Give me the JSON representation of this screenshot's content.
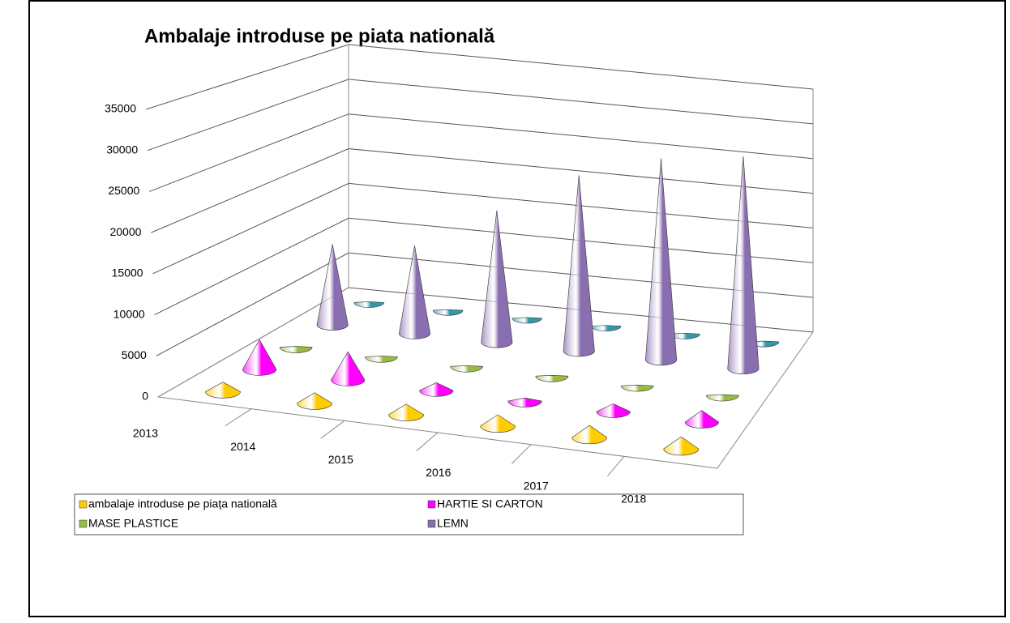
{
  "chart_data": {
    "type": "cone3d",
    "title": "Ambalaje introduse  pe  piata natională",
    "categories": [
      "2013",
      "2014",
      "2015",
      "2016",
      "2017",
      "2018"
    ],
    "series": [
      {
        "name": "ambalaje introduse pe piața natională",
        "color": "#ffcc00",
        "values": [
          1200,
          1300,
          1300,
          1400,
          1500,
          1500
        ]
      },
      {
        "name": "HARTIE SI CARTON",
        "color": "#ff00ff",
        "values": [
          3800,
          3600,
          1000,
          400,
          1000,
          1500
        ]
      },
      {
        "name": "MASE PLASTICE",
        "color": "#99bb44",
        "values": [
          100,
          100,
          100,
          100,
          100,
          100
        ]
      },
      {
        "name": "LEMN",
        "color": "#8a6fb0",
        "values": [
          11000,
          12000,
          18000,
          24000,
          27500,
          29000
        ]
      },
      {
        "name": null,
        "color": "#3399aa",
        "values": [
          100,
          100,
          100,
          100,
          100,
          100
        ]
      }
    ],
    "ylim": [
      0,
      35000
    ],
    "yticks": [
      0,
      5000,
      10000,
      15000,
      20000,
      25000,
      30000,
      35000
    ],
    "grid": true
  }
}
